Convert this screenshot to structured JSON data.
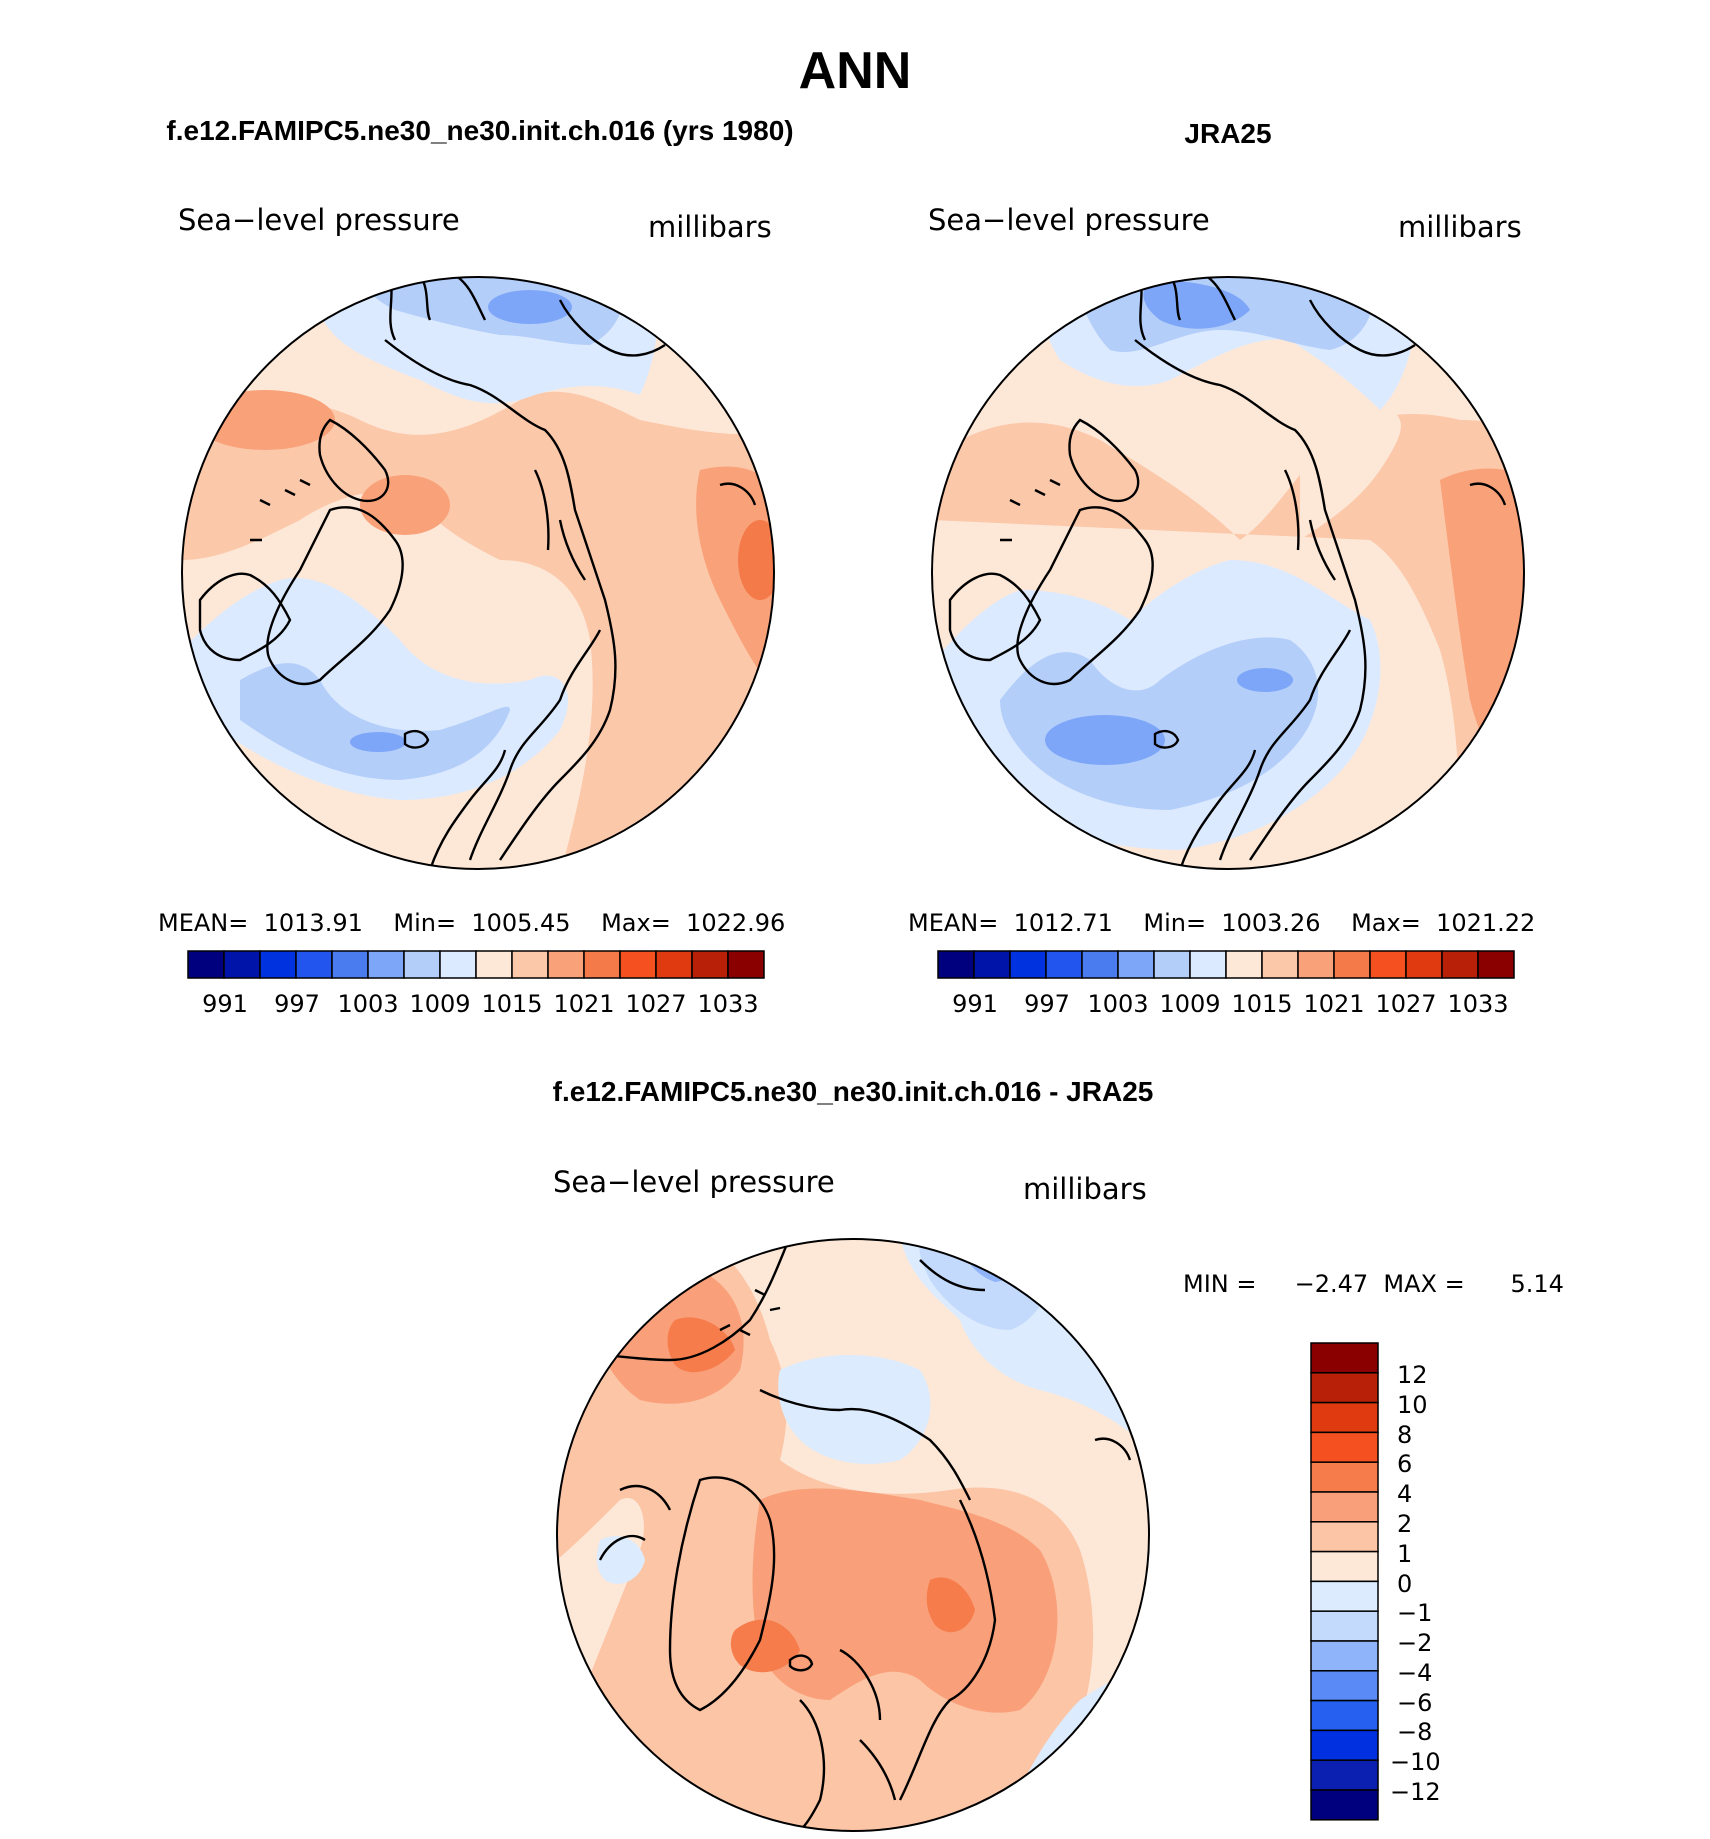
{
  "figure": {
    "title": "ANN",
    "diff_title": "f.e12.FAMIPC5.ne30_ne30.init.ch.016 - JRA25"
  },
  "panels": [
    {
      "heading": "f.e12.FAMIPC5.ne30_ne30.init.ch.016 (yrs 1980)",
      "variable": "Sea−level pressure",
      "units": "millibars",
      "stats": "MEAN=  1013.91    Min=  1005.45    Max=  1022.96"
    },
    {
      "heading": "JRA25",
      "variable": "Sea−level pressure",
      "units": "millibars",
      "stats": "MEAN=  1012.71    Min=  1003.26    Max=  1021.22"
    }
  ],
  "diff_panel": {
    "variable": "Sea−level pressure",
    "units": "millibars",
    "stats": "MIN =     −2.47  MAX =      5.14"
  },
  "colors": {
    "field_scale": [
      "#00007f",
      "#0014aa",
      "#0032e0",
      "#2255ee",
      "#4a7cf0",
      "#7ea6f8",
      "#b4cefa",
      "#dceaff",
      "#fde8d8",
      "#fcc8aa",
      "#f9a27a",
      "#f57a4a",
      "#f45020",
      "#e03a10",
      "#b82008",
      "#8a0000"
    ],
    "diff_scale": [
      "#00007f",
      "#0b1fb0",
      "#0030e0",
      "#2560f0",
      "#5a8af5",
      "#90b4fa",
      "#c4dafc",
      "#dcebfd",
      "#fde8d8",
      "#fcc5a6",
      "#f9a07a",
      "#f67c4c",
      "#f45020",
      "#e03a10",
      "#b82008",
      "#8a0000"
    ]
  },
  "field_colorbar_labels": [
    "991",
    "997",
    "1003",
    "1009",
    "1015",
    "1021",
    "1027",
    "1033"
  ],
  "diff_colorbar_labels": [
    "12",
    "10",
    "8",
    "6",
    "4",
    "2",
    "1",
    "0",
    "−1",
    "−2",
    "−4",
    "−6",
    "−8",
    "−10",
    "−12"
  ]
}
